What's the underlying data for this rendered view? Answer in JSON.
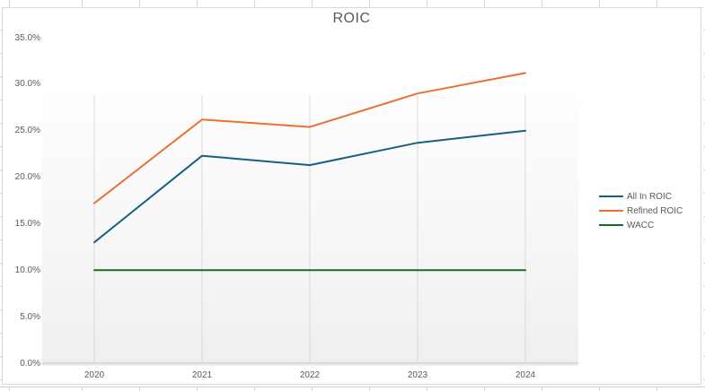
{
  "chart_data": {
    "type": "line",
    "title": "ROIC",
    "categories": [
      "2020",
      "2021",
      "2022",
      "2023",
      "2024"
    ],
    "series": [
      {
        "name": "All In ROIC",
        "color": "#156082",
        "values": [
          13.0,
          22.3,
          21.3,
          23.7,
          25.0
        ]
      },
      {
        "name": "Refined ROIC",
        "color": "#E97132",
        "values": [
          17.2,
          26.2,
          25.4,
          29.0,
          31.2
        ]
      },
      {
        "name": "WACC",
        "color": "#196B24",
        "values": [
          10.0,
          10.0,
          10.0,
          10.0,
          10.0
        ]
      }
    ],
    "unit": "%",
    "ylabel": "",
    "xlabel": "",
    "ylim": [
      0,
      35
    ],
    "y_axis": {
      "min": 0,
      "max": 35,
      "step": 5,
      "tick_labels": [
        "0.0%",
        "5.0%",
        "10.0%",
        "15.0%",
        "20.0%",
        "25.0%",
        "30.0%",
        "35.0%"
      ]
    },
    "legend_position": "right",
    "gridlines": "vertical",
    "grid_color": "#D9D9D9",
    "axis_line_color": "#BFBFBF",
    "text_color": "#595959"
  }
}
